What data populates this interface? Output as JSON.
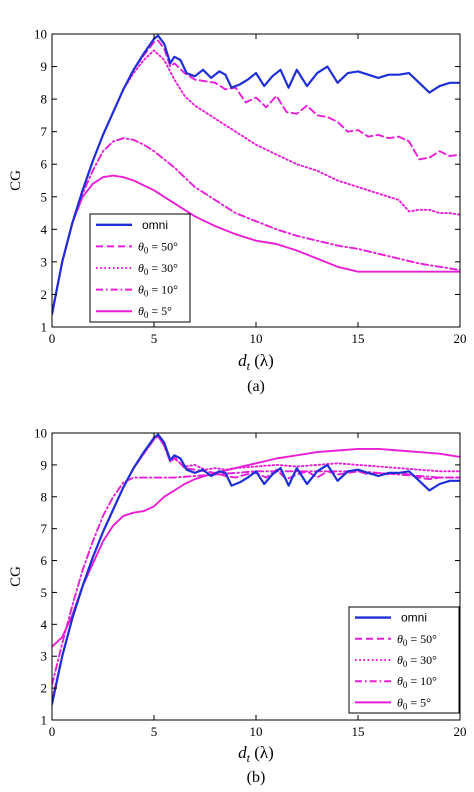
{
  "chart_data": [
    {
      "type": "line",
      "caption": "(a)",
      "xlabel": "d_t (λ)",
      "ylabel": "CG",
      "xlim": [
        0,
        20
      ],
      "ylim": [
        1,
        10
      ],
      "xticks": [
        0,
        5,
        10,
        15,
        20
      ],
      "yticks": [
        1,
        2,
        3,
        4,
        5,
        6,
        7,
        8,
        9,
        10
      ],
      "grid": false,
      "legend_position": "bottom-left",
      "series": [
        {
          "name": "omni",
          "color": "#1f2fd6",
          "dash": "solid",
          "x": [
            0,
            0.5,
            1,
            1.5,
            2,
            2.5,
            3,
            3.5,
            4,
            4.5,
            5,
            5.2,
            5.5,
            5.8,
            6,
            6.3,
            6.6,
            7,
            7.4,
            7.8,
            8.2,
            8.5,
            8.8,
            9.2,
            9.6,
            10,
            10.4,
            10.8,
            11.2,
            11.6,
            12,
            12.5,
            13,
            13.5,
            14,
            14.5,
            15,
            15.5,
            16,
            16.5,
            17,
            17.5,
            18,
            18.5,
            19,
            19.5,
            20
          ],
          "y": [
            1.4,
            3.0,
            4.2,
            5.2,
            6.1,
            6.9,
            7.6,
            8.3,
            8.9,
            9.4,
            9.85,
            9.95,
            9.7,
            9.1,
            9.3,
            9.2,
            8.8,
            8.7,
            8.9,
            8.65,
            8.85,
            8.75,
            8.35,
            8.45,
            8.6,
            8.8,
            8.4,
            8.7,
            8.9,
            8.35,
            8.9,
            8.4,
            8.8,
            9.0,
            8.5,
            8.8,
            8.85,
            8.75,
            8.65,
            8.75,
            8.75,
            8.8,
            8.5,
            8.2,
            8.4,
            8.5,
            8.5
          ]
        },
        {
          "name": "θ0 = 50°",
          "color": "#e81fd6",
          "dash": "dashed",
          "x": [
            0,
            0.5,
            1,
            1.5,
            2,
            2.5,
            3,
            3.5,
            4,
            4.5,
            5,
            5.2,
            5.5,
            5.8,
            6,
            6.5,
            7,
            7.5,
            8,
            8.5,
            9,
            9.5,
            10,
            10.5,
            11,
            11.5,
            12,
            12.5,
            13,
            13.5,
            14,
            14.5,
            15,
            15.5,
            16,
            16.5,
            17,
            17.5,
            18,
            18.5,
            19,
            19.5,
            20
          ],
          "y": [
            1.4,
            3.0,
            4.2,
            5.2,
            6.1,
            6.9,
            7.6,
            8.3,
            8.9,
            9.35,
            9.75,
            9.8,
            9.55,
            9.0,
            9.1,
            8.8,
            8.6,
            8.55,
            8.5,
            8.3,
            8.35,
            7.9,
            8.05,
            7.75,
            8.1,
            7.6,
            7.55,
            7.8,
            7.5,
            7.45,
            7.3,
            7.0,
            7.05,
            6.85,
            6.9,
            6.8,
            6.85,
            6.7,
            6.15,
            6.2,
            6.4,
            6.25,
            6.3
          ]
        },
        {
          "name": "θ0 = 30°",
          "color": "#e81fd6",
          "dash": "dotted",
          "x": [
            0,
            0.5,
            1,
            1.5,
            2,
            2.5,
            3,
            3.5,
            4,
            4.5,
            5,
            5.5,
            6,
            6.5,
            7,
            7.5,
            8,
            8.5,
            9,
            9.5,
            10,
            11,
            12,
            13,
            14,
            15,
            16,
            17,
            17.5,
            18,
            18.5,
            19,
            19.5,
            20
          ],
          "y": [
            1.4,
            3.0,
            4.2,
            5.2,
            6.1,
            6.9,
            7.6,
            8.3,
            8.8,
            9.2,
            9.5,
            9.2,
            8.6,
            8.1,
            7.8,
            7.6,
            7.4,
            7.2,
            7.0,
            6.8,
            6.6,
            6.3,
            6.0,
            5.8,
            5.5,
            5.3,
            5.1,
            4.9,
            4.55,
            4.6,
            4.6,
            4.5,
            4.5,
            4.45
          ]
        },
        {
          "name": "θ0 = 10°",
          "color": "#e81fd6",
          "dash": "dashdot",
          "x": [
            0,
            0.5,
            1,
            1.5,
            2,
            2.5,
            3,
            3.5,
            4,
            4.5,
            5,
            6,
            7,
            8,
            9,
            10,
            11,
            12,
            13,
            14,
            15,
            16,
            17,
            18,
            19,
            20
          ],
          "y": [
            1.4,
            3.0,
            4.2,
            5.1,
            5.8,
            6.4,
            6.7,
            6.8,
            6.75,
            6.6,
            6.4,
            5.9,
            5.3,
            4.9,
            4.5,
            4.25,
            4.0,
            3.8,
            3.65,
            3.5,
            3.4,
            3.25,
            3.1,
            2.95,
            2.85,
            2.75
          ]
        },
        {
          "name": "θ0 = 5°",
          "color": "#e81fd6",
          "dash": "solid",
          "x": [
            0,
            0.5,
            1,
            1.5,
            2,
            2.5,
            3,
            3.5,
            4,
            4.5,
            5,
            6,
            7,
            8,
            9,
            10,
            11,
            12,
            13,
            14,
            15,
            16,
            17,
            18,
            19,
            20
          ],
          "y": [
            1.4,
            3.0,
            4.2,
            5.0,
            5.4,
            5.6,
            5.65,
            5.6,
            5.5,
            5.35,
            5.2,
            4.8,
            4.4,
            4.1,
            3.85,
            3.65,
            3.55,
            3.35,
            3.1,
            2.85,
            2.7,
            2.7,
            2.7,
            2.7,
            2.7,
            2.7
          ]
        }
      ]
    },
    {
      "type": "line",
      "caption": "(b)",
      "xlabel": "d_t (λ)",
      "ylabel": "CG",
      "xlim": [
        0,
        20
      ],
      "ylim": [
        1,
        10
      ],
      "xticks": [
        0,
        5,
        10,
        15,
        20
      ],
      "yticks": [
        1,
        2,
        3,
        4,
        5,
        6,
        7,
        8,
        9,
        10
      ],
      "grid": false,
      "legend_position": "bottom-right",
      "series": [
        {
          "name": "omni",
          "color": "#1f2fd6",
          "dash": "solid",
          "x": [
            0,
            0.5,
            1,
            1.5,
            2,
            2.5,
            3,
            3.5,
            4,
            4.5,
            5,
            5.2,
            5.5,
            5.8,
            6,
            6.3,
            6.6,
            7,
            7.4,
            7.8,
            8.2,
            8.5,
            8.8,
            9.2,
            9.6,
            10,
            10.4,
            10.8,
            11.2,
            11.6,
            12,
            12.5,
            13,
            13.5,
            14,
            14.5,
            15,
            15.5,
            16,
            16.5,
            17,
            17.5,
            18,
            18.5,
            19,
            19.5,
            20
          ],
          "y": [
            1.5,
            3.0,
            4.2,
            5.2,
            6.1,
            6.9,
            7.6,
            8.3,
            8.9,
            9.4,
            9.85,
            9.95,
            9.7,
            9.15,
            9.3,
            9.2,
            8.85,
            8.75,
            8.85,
            8.65,
            8.8,
            8.75,
            8.35,
            8.45,
            8.6,
            8.8,
            8.4,
            8.7,
            8.9,
            8.35,
            8.9,
            8.4,
            8.8,
            9.0,
            8.5,
            8.8,
            8.85,
            8.75,
            8.65,
            8.75,
            8.75,
            8.8,
            8.5,
            8.2,
            8.4,
            8.5,
            8.5
          ]
        },
        {
          "name": "θ0 = 50°",
          "color": "#e81fd6",
          "dash": "dashed",
          "x": [
            0,
            0.5,
            1,
            1.5,
            2,
            2.5,
            3,
            3.5,
            4,
            4.5,
            5,
            5.2,
            5.5,
            5.8,
            6,
            6.5,
            7,
            7.5,
            8,
            8.5,
            9,
            9.5,
            10,
            10.5,
            11,
            11.5,
            12,
            12.5,
            13,
            13.5,
            14,
            14.5,
            15,
            15.5,
            16,
            16.5,
            17,
            17.5,
            18,
            18.5,
            19,
            19.5,
            20
          ],
          "y": [
            1.6,
            3.0,
            4.2,
            5.2,
            6.1,
            6.9,
            7.6,
            8.3,
            8.9,
            9.35,
            9.8,
            9.9,
            9.6,
            9.1,
            9.25,
            8.9,
            8.85,
            8.8,
            8.75,
            8.65,
            8.6,
            8.7,
            8.75,
            8.6,
            8.85,
            8.55,
            8.7,
            8.8,
            8.6,
            8.8,
            8.7,
            8.75,
            8.8,
            8.7,
            8.75,
            8.7,
            8.75,
            8.7,
            8.6,
            8.55,
            8.6,
            8.6,
            8.6
          ]
        },
        {
          "name": "θ0 = 30°",
          "color": "#e81fd6",
          "dash": "dotted",
          "x": [
            0,
            0.5,
            1,
            1.5,
            2,
            2.5,
            3,
            3.5,
            4,
            4.5,
            5,
            5.2,
            5.5,
            5.8,
            6,
            6.5,
            7,
            7.5,
            8,
            8.5,
            9,
            10,
            11,
            12,
            13,
            14,
            15,
            16,
            17,
            18,
            19,
            20
          ],
          "y": [
            1.6,
            3.0,
            4.2,
            5.2,
            6.1,
            6.9,
            7.6,
            8.3,
            8.9,
            9.35,
            9.8,
            9.9,
            9.6,
            9.1,
            9.2,
            8.95,
            9.0,
            8.85,
            8.9,
            8.85,
            8.9,
            8.95,
            9.0,
            8.95,
            9.0,
            9.05,
            9.0,
            8.95,
            8.9,
            8.85,
            8.8,
            8.8
          ]
        },
        {
          "name": "θ0 = 10°",
          "color": "#e81fd6",
          "dash": "dashdot",
          "x": [
            0,
            0.5,
            1,
            1.5,
            2,
            2.5,
            3,
            3.5,
            4,
            4.5,
            5,
            6,
            7,
            8,
            9,
            10,
            11,
            12,
            13,
            14,
            15,
            16,
            17,
            18,
            19,
            20
          ],
          "y": [
            2.1,
            3.4,
            4.6,
            5.7,
            6.6,
            7.4,
            8.0,
            8.45,
            8.6,
            8.6,
            8.6,
            8.6,
            8.65,
            8.7,
            8.75,
            8.8,
            8.8,
            8.8,
            8.8,
            8.8,
            8.8,
            8.75,
            8.7,
            8.65,
            8.6,
            8.6
          ]
        },
        {
          "name": "θ0 = 5°",
          "color": "#e81fd6",
          "dash": "solid",
          "x": [
            0,
            0.5,
            1,
            1.5,
            2,
            2.5,
            3,
            3.5,
            4,
            4.5,
            5,
            5.5,
            6,
            6.5,
            7,
            7.5,
            8,
            9,
            10,
            11,
            12,
            13,
            14,
            15,
            16,
            17,
            18,
            19,
            20
          ],
          "y": [
            3.3,
            3.6,
            4.3,
            5.2,
            5.9,
            6.6,
            7.1,
            7.4,
            7.5,
            7.55,
            7.7,
            8.0,
            8.2,
            8.4,
            8.55,
            8.65,
            8.75,
            8.9,
            9.05,
            9.2,
            9.3,
            9.4,
            9.45,
            9.5,
            9.5,
            9.45,
            9.4,
            9.35,
            9.25
          ]
        }
      ]
    }
  ]
}
